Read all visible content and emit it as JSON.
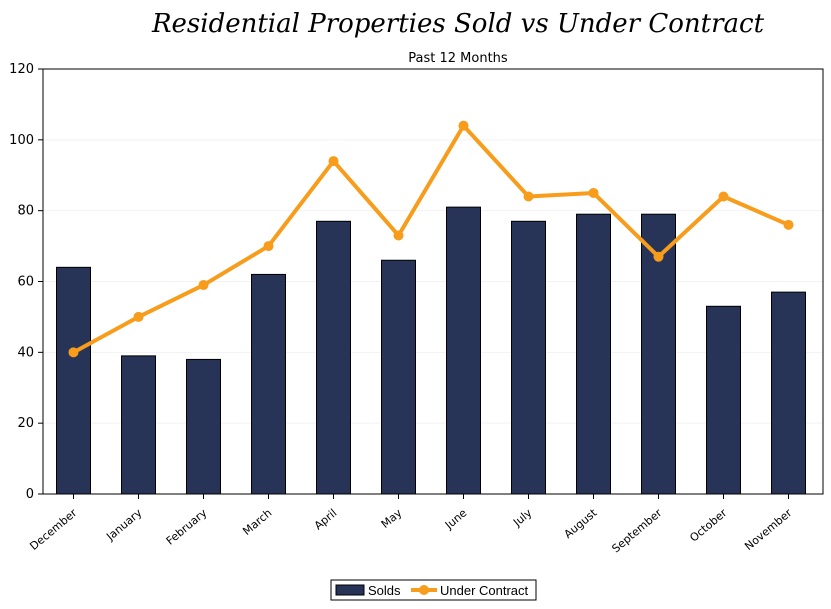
{
  "chart_data": {
    "type": "bar",
    "title": "Residential Properties Sold vs Under Contract",
    "subtitle": "Past 12 Months",
    "xlabel": "",
    "ylabel": "",
    "ylim": [
      0,
      120
    ],
    "yticks": [
      0,
      20,
      40,
      60,
      80,
      100,
      120
    ],
    "categories": [
      "December",
      "January",
      "February",
      "March",
      "April",
      "May",
      "June",
      "July",
      "August",
      "September",
      "October",
      "November"
    ],
    "series": [
      {
        "name": "Solds",
        "type": "bar",
        "color": "#273457",
        "values": [
          64,
          39,
          38,
          62,
          77,
          66,
          81,
          77,
          79,
          79,
          53,
          57
        ]
      },
      {
        "name": "Under Contract",
        "type": "line",
        "color": "#f89c1c",
        "values": [
          40,
          50,
          59,
          70,
          94,
          73,
          104,
          84,
          85,
          67,
          84,
          76
        ]
      }
    ],
    "grid": true,
    "legend_position": "bottom-center"
  }
}
